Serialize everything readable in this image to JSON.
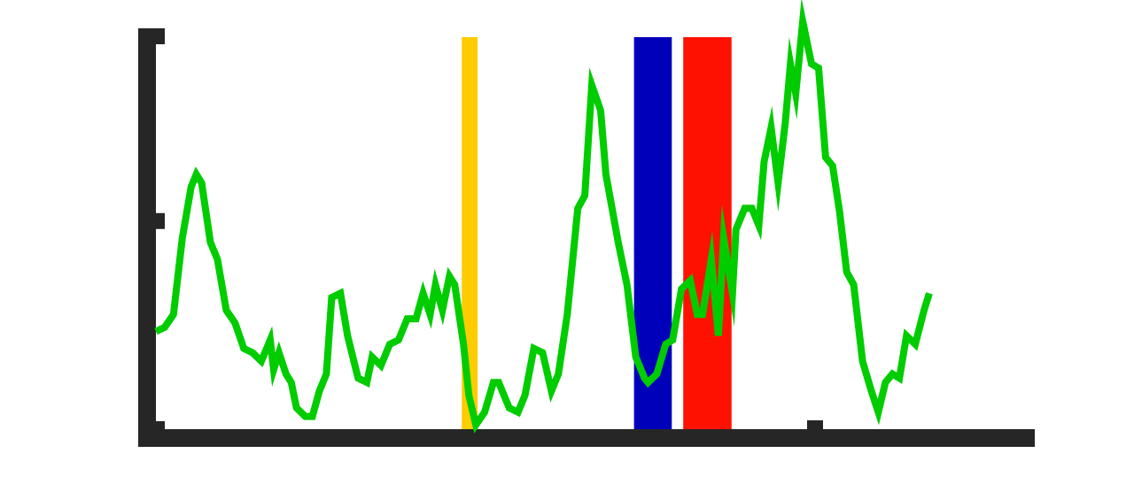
{
  "colors": {
    "background": "#ffffff",
    "axis": "#262626",
    "line": "#00cc00",
    "band_yellow": "#ffcc00",
    "band_blue": "#0000bb",
    "band_red": "#ff1100"
  },
  "chart_data": {
    "type": "line",
    "title": "",
    "xlabel": "",
    "ylabel": "",
    "grid": false,
    "legend": "none",
    "xlim": [
      0,
      100
    ],
    "ylim": [
      0,
      100
    ],
    "x_ticks": [
      0,
      75
    ],
    "y_ticks": [
      0,
      49,
      100
    ],
    "bands": [
      {
        "x_start": 34.8,
        "x_end": 36.6,
        "color": "#ffcc00"
      },
      {
        "x_start": 54.4,
        "x_end": 58.7,
        "color": "#0000bb"
      },
      {
        "x_start": 60.0,
        "x_end": 65.5,
        "color": "#ff1100"
      }
    ],
    "series": [
      {
        "x": [
          0.0,
          1.0,
          2.0,
          3.0,
          4.0,
          4.6,
          5.2,
          6.2,
          7.0,
          8.0,
          9.0,
          10.0,
          11.0,
          12.0,
          13.0,
          13.4,
          14.0,
          14.8,
          15.4,
          16.0,
          17.0,
          17.8,
          18.6,
          19.4,
          20.0,
          21.0,
          21.8,
          23.0,
          24.0,
          24.6,
          25.6,
          26.6,
          27.6,
          28.6,
          29.6,
          30.4,
          31.2,
          31.8,
          32.6,
          33.4,
          34.0,
          35.0,
          35.6,
          36.4,
          37.4,
          38.4,
          39.0,
          40.2,
          41.2,
          42.0,
          43.0,
          44.0,
          45.0,
          45.8,
          46.8,
          48.0,
          48.8,
          49.6,
          50.6,
          51.2,
          52.6,
          53.6,
          54.6,
          55.6,
          56.0,
          57.0,
          58.0,
          58.8,
          59.8,
          60.8,
          61.6,
          62.2,
          63.2,
          64.0,
          64.6,
          65.6,
          66.0,
          67.0,
          67.8,
          68.6,
          69.2,
          70.0,
          70.8,
          71.6,
          72.2,
          72.8,
          73.6,
          74.6,
          75.4,
          76.2,
          77.0,
          77.8,
          78.6,
          79.4,
          80.4,
          81.4,
          82.2,
          83.0,
          83.8,
          84.6,
          85.4,
          86.4,
          87.4,
          88.0
        ],
        "y": [
          23,
          24,
          27,
          45,
          57,
          60,
          58,
          44,
          40,
          28,
          25,
          19,
          18,
          16,
          21,
          14,
          18,
          13,
          11,
          5,
          3,
          3,
          9,
          13,
          31,
          32,
          22,
          12,
          11,
          17,
          15,
          20,
          21,
          26,
          26,
          32,
          27,
          34,
          28,
          36,
          34,
          20,
          8,
          1,
          4,
          11,
          11,
          5,
          4,
          8,
          19,
          18,
          9,
          13,
          27,
          52,
          55,
          81,
          75,
          60,
          44,
          34,
          17,
          12,
          11,
          13,
          20,
          21,
          33,
          35,
          27,
          27,
          40,
          22,
          45,
          32,
          47,
          52,
          52,
          48,
          63,
          71,
          58,
          72,
          86,
          79,
          96,
          86,
          85,
          64,
          62,
          51,
          37,
          34,
          16,
          9,
          4,
          11,
          13,
          12,
          22,
          20,
          28,
          32
        ]
      }
    ]
  }
}
